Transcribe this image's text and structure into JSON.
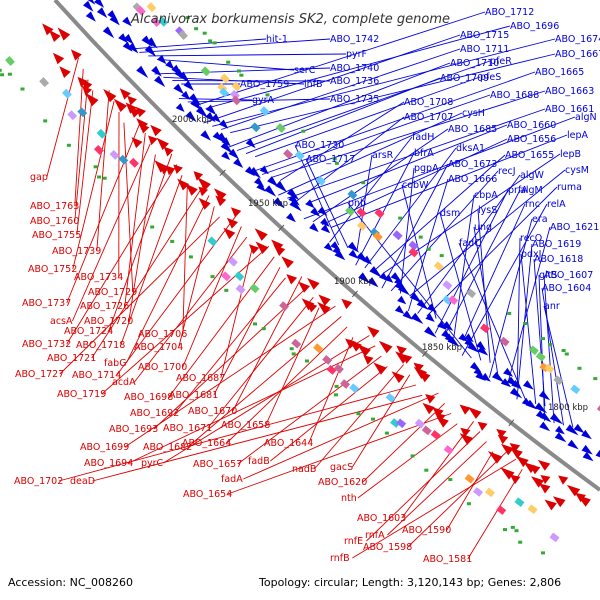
{
  "title": "Alcanivorax borkumensis SK2, complete genome",
  "accession": "Accession: NC_008260",
  "summary": "Topology: circular; Length: 3,120,143 bp; Genes: 2,806",
  "colors": {
    "forward": "#0000dd",
    "reverse": "#dd0000",
    "backbone": "#888888",
    "title": "#333333"
  },
  "ticks": [
    {
      "label": "2000 kbp",
      "kbp": 2000
    },
    {
      "label": "1950 kbp",
      "kbp": 1950
    },
    {
      "label": "1900 kbp",
      "kbp": 1900
    },
    {
      "label": "1850 kbp",
      "kbp": 1850
    },
    {
      "label": "1800 kbp",
      "kbp": 1800
    }
  ],
  "blue_labels": [
    "hit-1",
    "ABO_1742",
    "pyrF",
    "serC",
    "ABO_1740",
    "ihfB",
    "ABO_1736",
    "ABO_1759",
    "gyrA",
    "ABO_1735",
    "ABO_1712",
    "ABO_1696",
    "ABO_1715",
    "ABO_1674",
    "ABO_1711",
    "ABO_1667",
    "ABO_1710",
    "pfeR",
    "ABO_1709",
    "pfeS",
    "ABO_1665",
    "ABO_1688",
    "ABO_1663",
    "ABO_1708",
    "cysH",
    "ABO_1661",
    "ABO_1707",
    "ABO_1660",
    "algN",
    "ABO_1685",
    "ABO_1656",
    "lepA",
    "fadH",
    "ABO_1730",
    "ABO_1717",
    "arsR",
    "bfrA",
    "dksA1",
    "ABO_1655",
    "lepB",
    "ABO_1673",
    "recJ",
    "pgpA",
    "cysM",
    "ABO_1666",
    "algW",
    "ruma",
    "cobW",
    "prfA",
    "algM",
    "cbpA",
    "rnc",
    "relA",
    "pnb",
    "dsm",
    "lysS",
    "era",
    "ung",
    "ABO_1621",
    "recO",
    "ABO_1619",
    "fadC",
    "pdxJ",
    "ABO_1618",
    "gltS",
    "ABO_1607",
    "ABO_1604",
    "anr"
  ],
  "red_labels": [
    "gap",
    "ABO_1763",
    "ABO_1760",
    "ABO_1755",
    "ABO_1739",
    "ABO_1752",
    "ABO_1734",
    "ABO_1729",
    "ABO_1737",
    "ABO_1726",
    "acsA",
    "ABO_1720",
    "ABO_1724",
    "ABO_1732",
    "ABO_1718",
    "ABO_1706",
    "ABO_1721",
    "fabG",
    "ABO_1704",
    "ABO_1727",
    "ABO_1714",
    "ABO_1700",
    "acdA",
    "ABO_1687",
    "ABO_1719",
    "ABO_1698",
    "ABO_1681",
    "ABO_1692",
    "ABO_1670",
    "ABO_1693",
    "ABO_1671",
    "ABO_1658",
    "ABO_1699",
    "ABO_1682",
    "ABO_1664",
    "ABO_1644",
    "pyrC",
    "ABO_1694",
    "ABO_1657",
    "fadB",
    "nadB",
    "gacS",
    "ABO_1702",
    "deaD",
    "fadA",
    "ABO_1620",
    "ABO_1654",
    "nth",
    "ABO_1603",
    "rnfE",
    "rnfA",
    "ABO_1590",
    "ABO_1598",
    "rnfB",
    "ABO_1581"
  ]
}
